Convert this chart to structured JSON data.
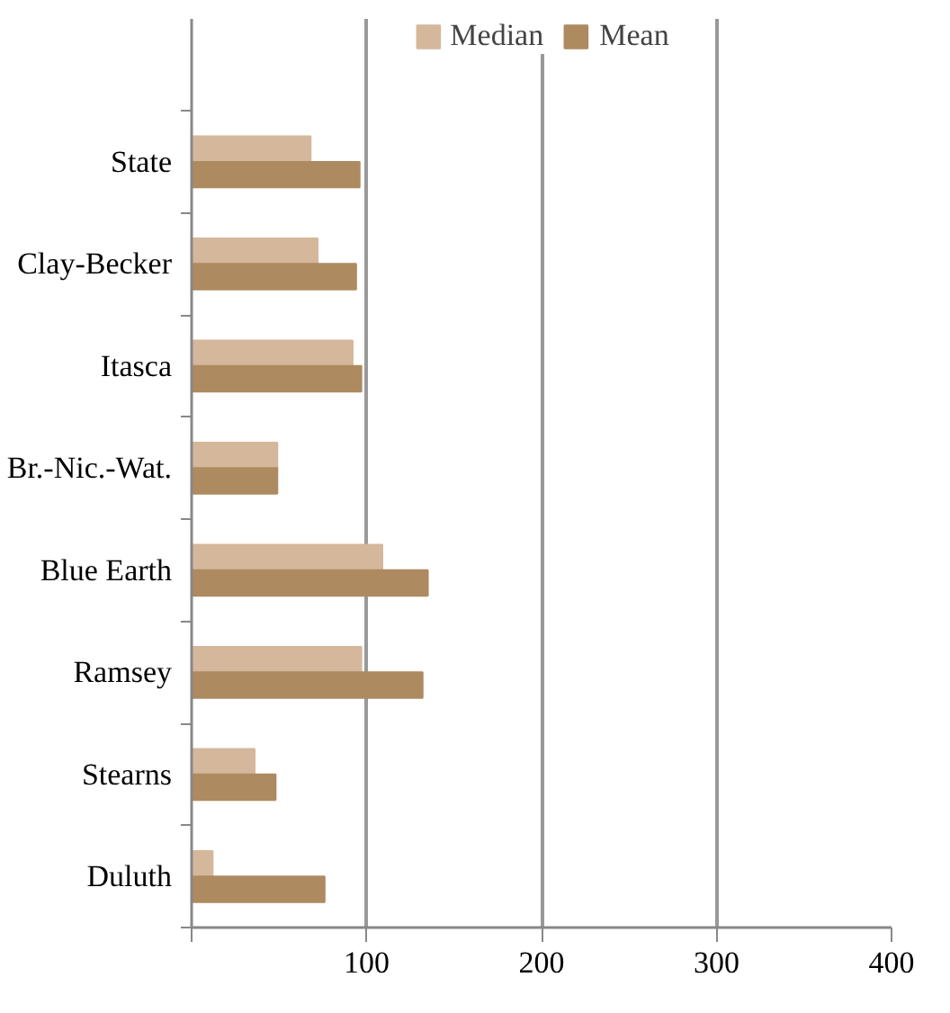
{
  "chart_data": {
    "type": "bar",
    "orientation": "horizontal",
    "categories": [
      "State",
      "Clay-Becker",
      "Itasca",
      "Br.-Nic.-Wat.",
      "Blue Earth",
      "Ramsey",
      "Stearns",
      "Duluth"
    ],
    "series": [
      {
        "name": "Median",
        "color": "#d5b79c",
        "values": [
          68,
          72,
          92,
          49,
          109,
          97,
          36,
          12
        ]
      },
      {
        "name": "Mean",
        "color": "#ae8a60",
        "values": [
          96,
          94,
          97,
          49,
          135,
          132,
          48,
          76
        ]
      }
    ],
    "xlim": [
      0,
      400
    ],
    "xticks": [
      {
        "value": 0,
        "label": null
      },
      100,
      200,
      300,
      400
    ],
    "grid": "x",
    "legend": "top"
  }
}
